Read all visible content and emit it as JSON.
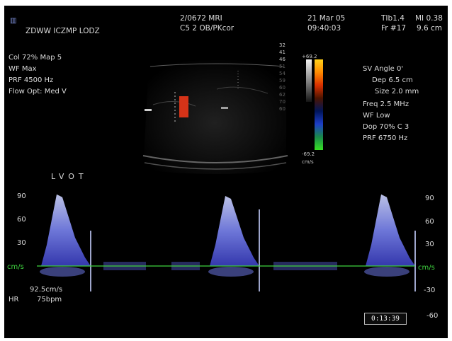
{
  "header": {
    "logo_text": "ZDWW ICZMP LODZ",
    "patient_line1": "2/0672 MRI",
    "patient_line2": "C5 2 OB/PKcor",
    "date": "21 Mar 05",
    "time": "09:40:03",
    "tib": "TIb1.4",
    "mi": "MI 0.38",
    "frame": "Fr #17",
    "depth": "9.6 cm"
  },
  "left_params": [
    "Col 72%  Map 5",
    "WF Max",
    "PRF 4500  Hz",
    "Flow Opt: Med V"
  ],
  "right_params": [
    "SV Angle 0'",
    "Dep 6.5  cm",
    "Size 2.0  mm",
    "Freq 2.5  MHz",
    "WF Low",
    "Dop 70%  C 3",
    "PRF 6750  Hz"
  ],
  "color_bar": {
    "top_value": "+69.2",
    "bottom_value": "-69.2",
    "unit": "cm/s",
    "mini_scale": [
      "32",
      "41",
      "46",
      "51",
      "54",
      "59",
      "60",
      "62",
      "70",
      "60"
    ],
    "colors": [
      "#ffd21a",
      "#ff8a00",
      "#d83000",
      "#4b1400",
      "#00155a",
      "#1d3ec8",
      "#1a8a4a",
      "#36e024"
    ]
  },
  "waveform": {
    "title": "LVOT",
    "left_scale": [
      "90",
      "60",
      "30",
      "cm/s"
    ],
    "right_scale": [
      "90",
      "60",
      "30",
      "cm/s",
      "-30",
      "-60"
    ],
    "velocity": "92.5cm/s",
    "hr_label": "HR",
    "hr_value": "75bpm",
    "timestamp": "0:13:39",
    "peak_velocities_cm_s": [
      92,
      90,
      92
    ]
  }
}
